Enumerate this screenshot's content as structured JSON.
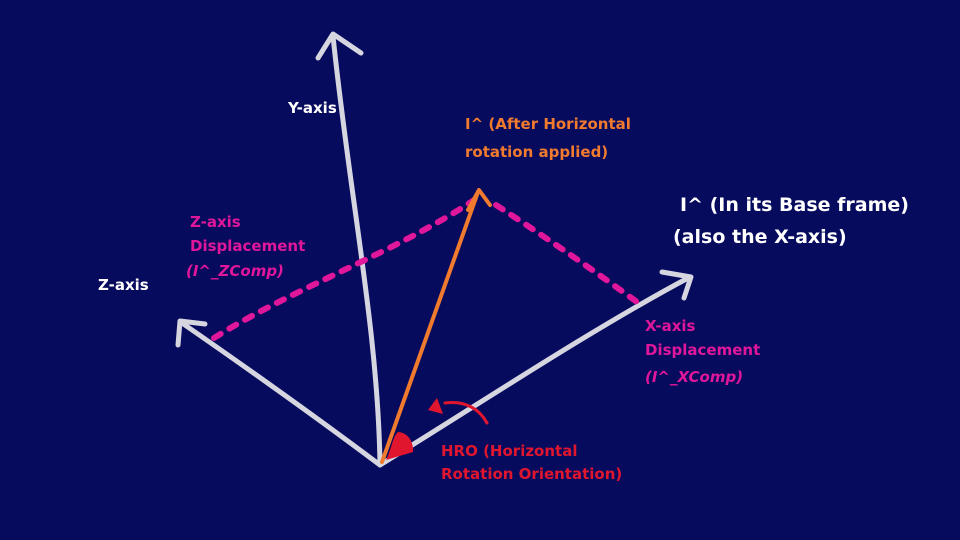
{
  "colors": {
    "background": "#070b5e",
    "axes": "#d6d6e0",
    "rotated_vector": "#f07a2e",
    "displacement": "#e0169b",
    "rotation": "#e0162e",
    "base_label": "#ffffff"
  },
  "labels": {
    "y_axis": "Y-axis",
    "z_axis": "Z-axis",
    "rotated": "I^ (After Horizontal rotation applied)",
    "base_line1": "I^ (In its Base frame)",
    "base_line2": "(also the X-axis)",
    "z_disp": "Z-axis Displacement",
    "z_comp": "(I^_ZComp)",
    "x_disp": "X-axis Displacement",
    "x_comp": "(I^_XComp)",
    "hro": "HRO (Horizontal Rotation Orientation)"
  }
}
